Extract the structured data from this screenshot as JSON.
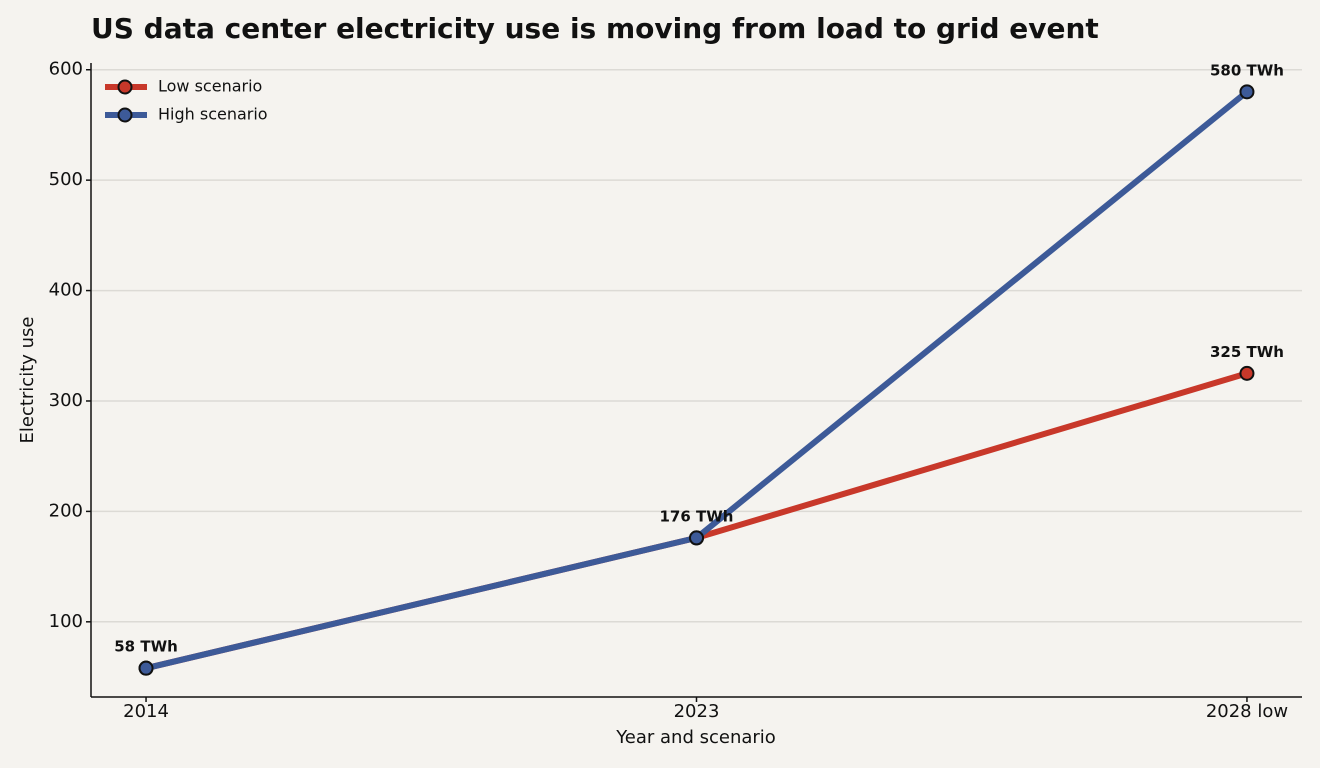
{
  "chart_data": {
    "type": "line",
    "title": "US data center electricity use is moving from load to grid event",
    "x_label": "Year and scenario",
    "y_label": "Electricity use",
    "categories": [
      "2014",
      "2023",
      "2028 low"
    ],
    "series": [
      {
        "name": "Low scenario",
        "color": "#c8382a",
        "values": [
          58,
          176,
          325
        ],
        "value_labels": [
          "58 TWh",
          "176 TWh",
          "325 TWh"
        ]
      },
      {
        "name": "High scenario",
        "color": "#3d5a98",
        "values": [
          58,
          176,
          580
        ],
        "value_labels": [
          null,
          null,
          "580 TWh"
        ]
      }
    ],
    "ylim": [
      31.9,
      606.1
    ],
    "yticks": [
      100,
      200,
      300,
      400,
      500,
      600
    ],
    "grid": true,
    "legend": "upper left"
  }
}
